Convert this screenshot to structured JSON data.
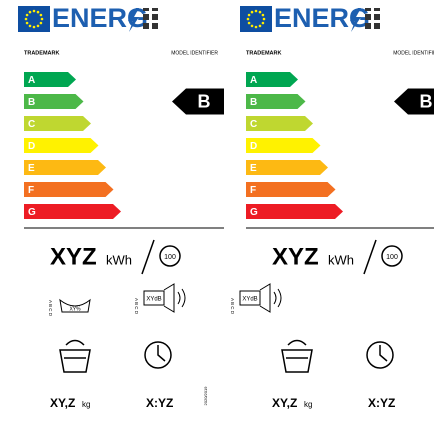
{
  "labels": [
    {
      "brand": "ENERG",
      "trademark": "TRADEMARK",
      "model": "MODEL IDENTIFIER",
      "classes": [
        "A",
        "B",
        "C",
        "D",
        "E",
        "F",
        "G"
      ],
      "class_colors": [
        "#00a651",
        "#4cb848",
        "#bfd730",
        "#fff200",
        "#fdb913",
        "#f37021",
        "#ed1c24"
      ],
      "rating": "B",
      "energy": "XYZ",
      "energy_unit": "kWh",
      "cycles": "100",
      "water_classes": "A B C D",
      "water_label": "XY%",
      "noise_classes": "A B C D",
      "noise": "XYdB",
      "capacity": "XY,Z",
      "capacity_unit": "kg",
      "duration": "X:YZ",
      "regulation": "2020/2019"
    },
    {
      "brand": "ENERG",
      "trademark": "TRADEMARK",
      "model": "MODEL IDENTIFIER",
      "classes": [
        "A",
        "B",
        "C",
        "D",
        "E",
        "F",
        "G"
      ],
      "class_colors": [
        "#00a651",
        "#4cb848",
        "#bfd730",
        "#fff200",
        "#fdb913",
        "#f37021",
        "#ed1c24"
      ],
      "rating": "B",
      "energy": "XYZ",
      "energy_unit": "kWh",
      "cycles": "100",
      "noise_classes": "A B C D",
      "noise": "XYdB",
      "capacity": "XY,Z",
      "capacity_unit": "kg",
      "duration": "X:YZ"
    }
  ]
}
